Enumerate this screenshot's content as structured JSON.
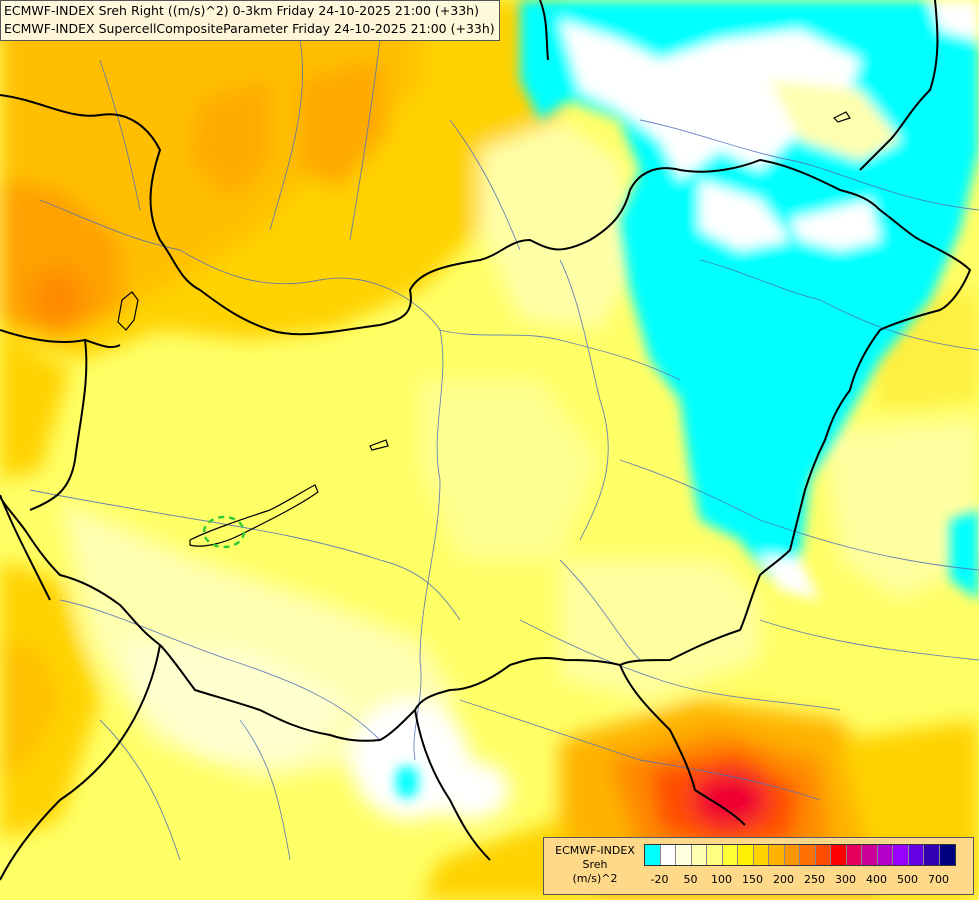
{
  "title": {
    "line1": "ECMWF-INDEX Sreh Right ((m/s)^2) 0-3km Friday 24-10-2025 21:00 (+33h)",
    "line2": "ECMWF-INDEX SupercellCompositeParameter Friday 24-10-2025 21:00 (+33h)"
  },
  "legend": {
    "title_line1": "ECMWF-INDEX",
    "title_line2": "Sreh",
    "title_line3": "(m/s)^2",
    "colors": [
      "#00ffff",
      "#ffffff",
      "#ffffe0",
      "#ffffb0",
      "#ffff80",
      "#ffff33",
      "#ffef00",
      "#ffd200",
      "#ffb300",
      "#ff9500",
      "#ff7000",
      "#ff4d00",
      "#ff0000",
      "#e6005c",
      "#cc0099",
      "#b300cc",
      "#9900ff",
      "#6600e6",
      "#3300b3",
      "#000080"
    ],
    "ticks": [
      "-20",
      "50",
      "100",
      "150",
      "200",
      "250",
      "300",
      "400",
      "500",
      "700"
    ]
  }
}
